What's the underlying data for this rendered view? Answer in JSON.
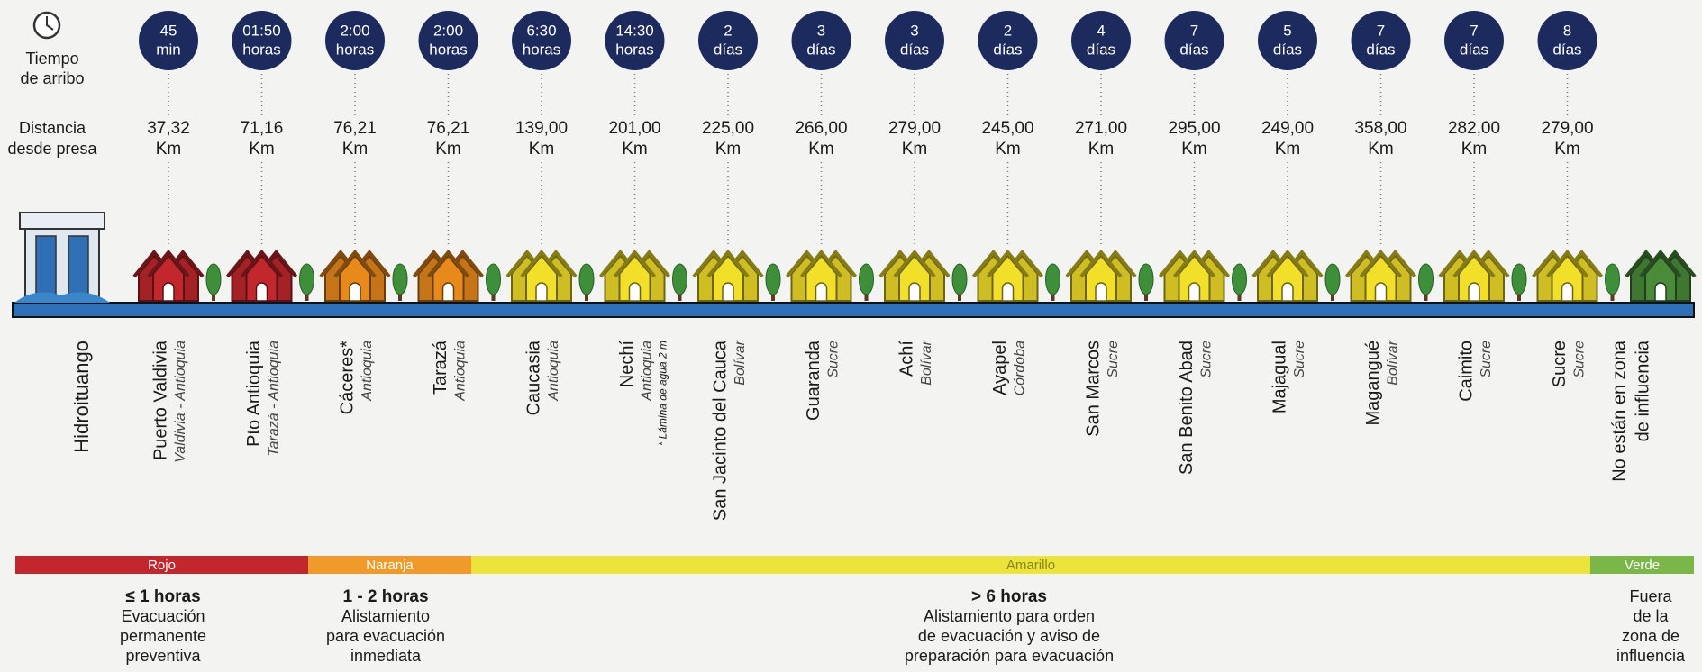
{
  "header": {
    "time_label": [
      "Tiempo",
      "de arribo"
    ],
    "distance_label": [
      "Distancia",
      "desde presa"
    ]
  },
  "dam": {
    "label": "Hidroituango"
  },
  "towns": [
    {
      "time": "45",
      "time_unit": "min",
      "distance": "37,32",
      "distance_unit": "Km",
      "name": "Puerto Valdivia",
      "region": "Valdivia - Antioquia",
      "color": "#c1272d"
    },
    {
      "time": "01:50",
      "time_unit": "horas",
      "distance": "71,16",
      "distance_unit": "Km",
      "name": "Pto Antioquia",
      "region": "Tarazá - Antioquia",
      "color": "#c1272d"
    },
    {
      "time": "2:00",
      "time_unit": "horas",
      "distance": "76,21",
      "distance_unit": "Km",
      "name": "Cáceres*",
      "region": "Antioquia",
      "color": "#e8891c"
    },
    {
      "time": "2:00",
      "time_unit": "horas",
      "distance": "76,21",
      "distance_unit": "Km",
      "name": "Tarazá",
      "region": "Antioquia",
      "color": "#e8891c"
    },
    {
      "time": "6:30",
      "time_unit": "horas",
      "distance": "139,00",
      "distance_unit": "Km",
      "name": "Caucasia",
      "region": "Antioquia",
      "color": "#f2df2a"
    },
    {
      "time": "14:30",
      "time_unit": "horas",
      "distance": "201,00",
      "distance_unit": "Km",
      "name": "Nechí",
      "region": "Antioquia",
      "note": "* Lámina de agua 2 m",
      "color": "#f2df2a"
    },
    {
      "time": "2",
      "time_unit": "días",
      "distance": "225,00",
      "distance_unit": "Km",
      "name": "San Jacinto del Cauca",
      "region": "Bolívar",
      "color": "#f2df2a"
    },
    {
      "time": "3",
      "time_unit": "días",
      "distance": "266,00",
      "distance_unit": "Km",
      "name": "Guaranda",
      "region": "Sucre",
      "color": "#f2df2a"
    },
    {
      "time": "3",
      "time_unit": "días",
      "distance": "279,00",
      "distance_unit": "Km",
      "name": "Achí",
      "region": "Bolívar",
      "color": "#f2df2a"
    },
    {
      "time": "2",
      "time_unit": "días",
      "distance": "245,00",
      "distance_unit": "Km",
      "name": "Ayapel",
      "region": "Córdoba",
      "color": "#f2df2a"
    },
    {
      "time": "4",
      "time_unit": "días",
      "distance": "271,00",
      "distance_unit": "Km",
      "name": "San Marcos",
      "region": "Sucre",
      "color": "#f2df2a"
    },
    {
      "time": "7",
      "time_unit": "días",
      "distance": "295,00",
      "distance_unit": "Km",
      "name": "San Benito Abad",
      "region": "Sucre",
      "color": "#f2df2a"
    },
    {
      "time": "5",
      "time_unit": "días",
      "distance": "249,00",
      "distance_unit": "Km",
      "name": "Majagual",
      "region": "Sucre",
      "color": "#f2df2a"
    },
    {
      "time": "7",
      "time_unit": "días",
      "distance": "358,00",
      "distance_unit": "Km",
      "name": "Magangué",
      "region": "Bolívar",
      "color": "#f2df2a"
    },
    {
      "time": "7",
      "time_unit": "días",
      "distance": "282,00",
      "distance_unit": "Km",
      "name": "Caimito",
      "region": "Sucre",
      "color": "#f2df2a"
    },
    {
      "time": "8",
      "time_unit": "días",
      "distance": "279,00",
      "distance_unit": "Km",
      "name": "Sucre",
      "region": "Sucre",
      "color": "#f2df2a"
    }
  ],
  "no_influence": {
    "label": [
      "No están en zona",
      "de influencia"
    ],
    "color": "#4a8b3a"
  },
  "zones": [
    {
      "name": "Rojo",
      "color": "#c1272d",
      "heading": "≤ 1 horas",
      "text": [
        "Evacuación",
        "permanente",
        "preventiva"
      ]
    },
    {
      "name": "Naranja",
      "color": "#ef9a2a",
      "heading": "1 - 2 horas",
      "text": [
        "Alistamiento",
        "para evacuación",
        "inmediata"
      ]
    },
    {
      "name": "Amarillo",
      "color": "#ece43a",
      "heading": "> 6 horas",
      "text": [
        "Alistamiento para orden",
        "de evacuación y aviso de",
        "preparación  para evacuación"
      ]
    },
    {
      "name": "Verde",
      "color": "#7ab648",
      "text": [
        "Fuera",
        "de la",
        "zona de",
        "influencia"
      ]
    }
  ]
}
